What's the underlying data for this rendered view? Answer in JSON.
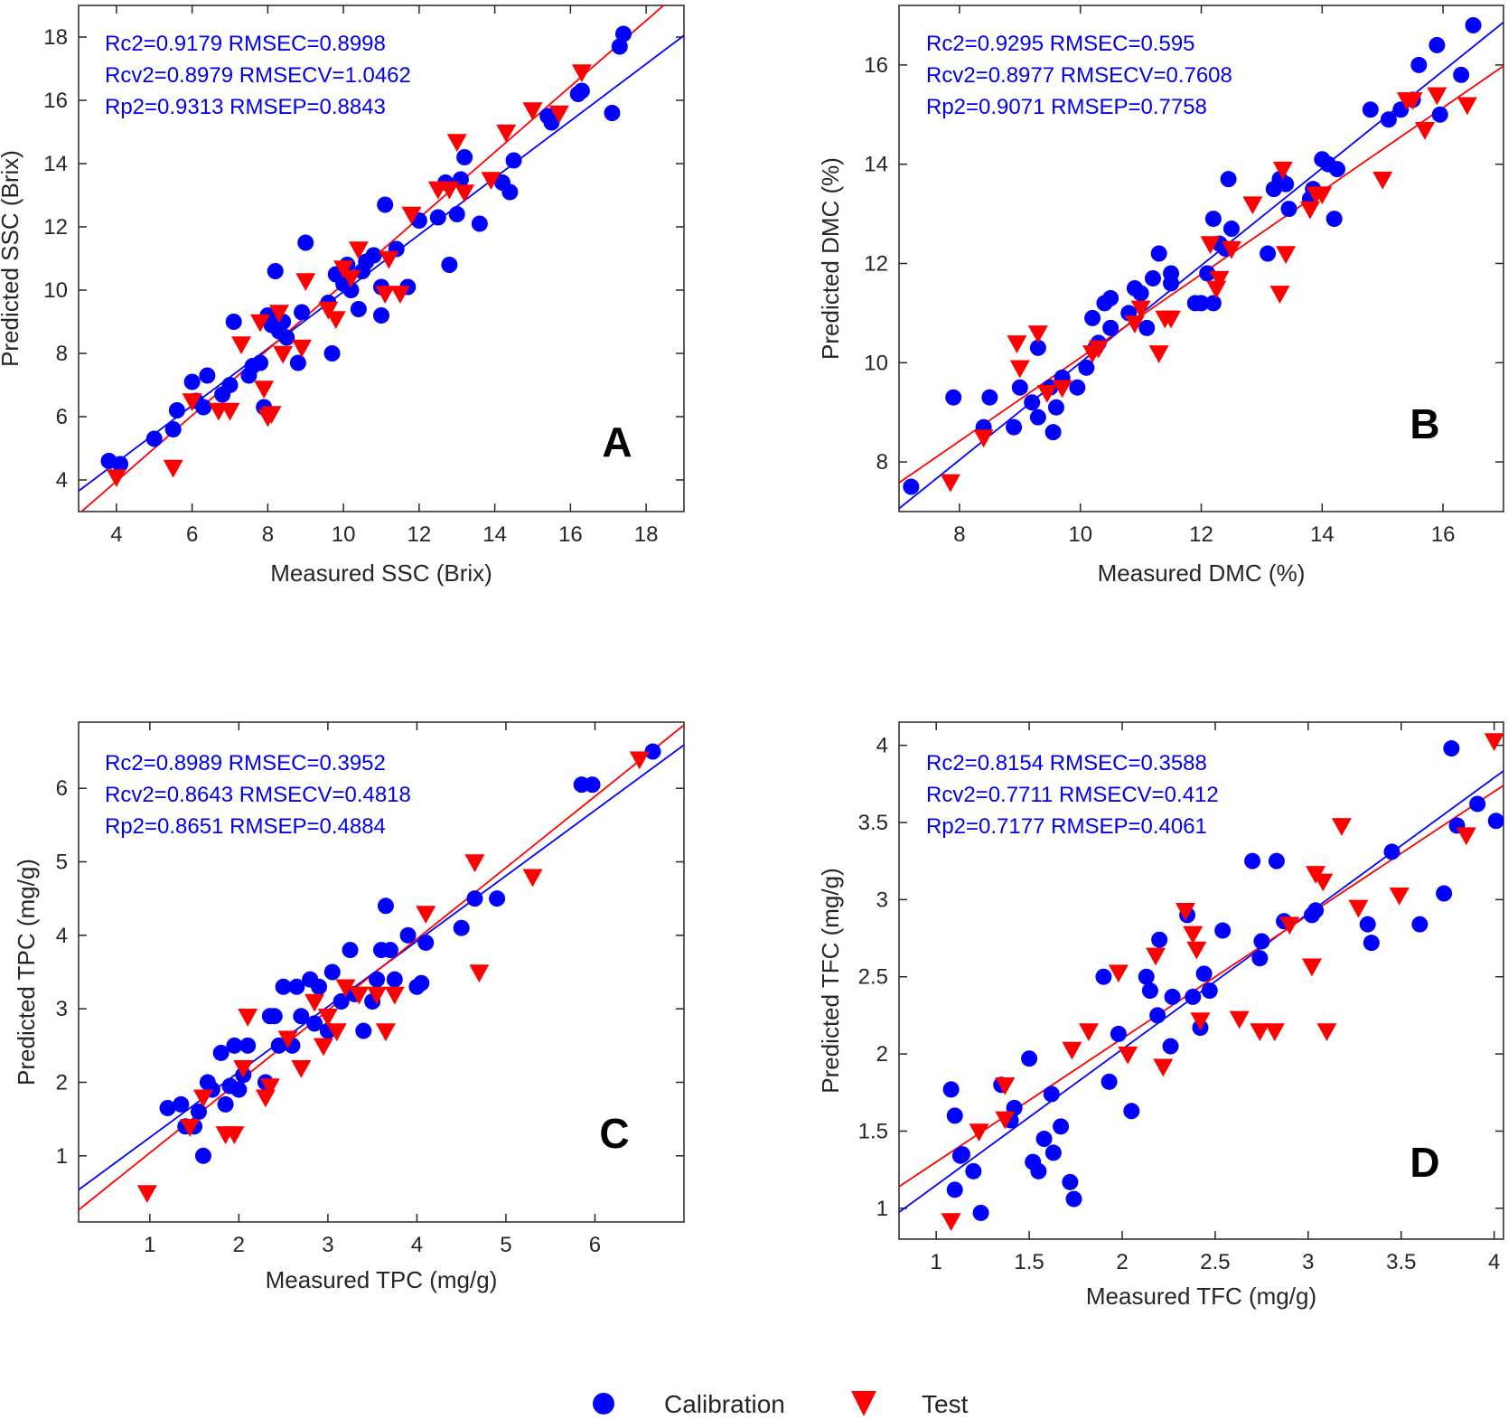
{
  "colors": {
    "calibration": "#0000ff",
    "test": "#ff0000",
    "axis": "#262626",
    "stats": "#0000ee"
  },
  "legend": {
    "calibration_label": "Calibration",
    "test_label": "Test"
  },
  "chart_data": [
    {
      "type": "scatter",
      "panel_label": "A",
      "xlabel": "Measured SSC (Brix)",
      "ylabel": "Predicted SSC (Brix)",
      "xlim": [
        3,
        19
      ],
      "ylim": [
        3,
        19
      ],
      "xticks": [
        4,
        6,
        8,
        10,
        12,
        14,
        16,
        18
      ],
      "yticks": [
        4,
        6,
        8,
        10,
        12,
        14,
        16,
        18
      ],
      "stats": [
        "Rc2=0.9179   RMSEC=0.8998",
        "Rcv2=0.8979  RMSECV=1.0462",
        "Rp2=0.9313   RMSEP=0.8843"
      ],
      "fit_lines": {
        "calibration": [
          0.9,
          0.95
        ],
        "test": [
          1.04,
          -0.2
        ]
      },
      "series": [
        {
          "name": "Calibration",
          "marker": "circle",
          "x": [
            3.8,
            4.1,
            5,
            5.5,
            5.6,
            6,
            6.1,
            6.3,
            6.4,
            6.8,
            7,
            7.1,
            7.5,
            7.6,
            7.8,
            7.9,
            8,
            8.1,
            8.2,
            8.3,
            8.4,
            8.5,
            8.8,
            8.9,
            9,
            9.6,
            9.7,
            9.8,
            10,
            10.1,
            10.2,
            10.4,
            10.5,
            10.6,
            10.8,
            11,
            11,
            11.1,
            11.4,
            11.7,
            12,
            12.5,
            12.8,
            12.7,
            13,
            13.1,
            13.2,
            13.6,
            14.2,
            14.4,
            14.5,
            15.4,
            15.5,
            16.2,
            16.3,
            17.1,
            17.3,
            17.4
          ],
          "y": [
            4.6,
            4.5,
            5.3,
            5.6,
            6.2,
            7.1,
            6.5,
            6.3,
            7.3,
            6.7,
            7.0,
            9.0,
            7.3,
            7.6,
            7.7,
            6.3,
            9.2,
            8.9,
            10.6,
            8.7,
            9.0,
            8.5,
            7.7,
            9.3,
            11.5,
            9.6,
            8.0,
            10.5,
            10.2,
            10.8,
            10.0,
            9.4,
            10.6,
            10.9,
            11.1,
            10.1,
            9.2,
            12.7,
            11.3,
            10.1,
            12.2,
            12.3,
            10.8,
            13.4,
            12.4,
            13.5,
            14.2,
            12.1,
            13.4,
            13.1,
            14.1,
            15.5,
            15.3,
            16.2,
            16.3,
            15.6,
            17.7,
            18.1
          ]
        },
        {
          "name": "Test",
          "marker": "triangle",
          "x": [
            4,
            5.5,
            6,
            6.7,
            7,
            7.3,
            7.8,
            8,
            7.9,
            8.1,
            8.3,
            8.4,
            8.9,
            9,
            9.6,
            9.8,
            10,
            10.2,
            10.4,
            11.1,
            11.2,
            11.5,
            11.8,
            12.5,
            12.8,
            13,
            13.2,
            13.9,
            14.3,
            15,
            15.7,
            16.3
          ],
          "y": [
            4.1,
            4.4,
            6.5,
            6.2,
            6.2,
            8.3,
            9.0,
            6.0,
            6.9,
            6.1,
            9.3,
            8.0,
            8.2,
            10.3,
            9.4,
            9.1,
            10.7,
            10.4,
            11.3,
            9.9,
            11.0,
            9.9,
            12.4,
            13.2,
            13.2,
            14.7,
            13.1,
            13.5,
            15.0,
            15.7,
            15.6,
            16.9
          ]
        }
      ]
    },
    {
      "type": "scatter",
      "panel_label": "B",
      "xlabel": "Measured DMC (%)",
      "ylabel": "Predicted DMC (%)",
      "xlim": [
        7,
        17
      ],
      "ylim": [
        7,
        17.2
      ],
      "xticks": [
        8,
        10,
        12,
        14,
        16
      ],
      "yticks": [
        8,
        10,
        12,
        14,
        16
      ],
      "stats": [
        "Rc2=0.9295   RMSEC=0.595",
        "Rcv2=0.8977  RMSECV=0.7608",
        "Rp2=0.9071   RMSEP=0.7758"
      ],
      "fit_lines": {
        "calibration": [
          0.98,
          0.2
        ],
        "test": [
          0.84,
          1.7
        ]
      },
      "series": [
        {
          "name": "Calibration",
          "marker": "circle",
          "x": [
            7.2,
            7.9,
            8.4,
            8.5,
            8.9,
            9,
            9.2,
            9.3,
            9.3,
            9.5,
            9.55,
            9.6,
            9.7,
            9.95,
            10.1,
            10.2,
            10.25,
            10.3,
            10.4,
            10.5,
            10.5,
            10.8,
            10.9,
            11,
            11.1,
            11.2,
            11.3,
            11.5,
            11.5,
            11.9,
            12.0,
            12.1,
            12.2,
            12.2,
            12.3,
            12.4,
            12.45,
            12.5,
            13.1,
            13.2,
            13.3,
            13.4,
            13.45,
            13.8,
            13.85,
            14,
            14.1,
            14.2,
            14.25,
            14.8,
            15.1,
            15.3,
            15.5,
            15.6,
            15.9,
            15.95,
            16.3,
            16.5
          ],
          "y": [
            7.5,
            9.3,
            8.7,
            9.3,
            8.7,
            9.5,
            9.2,
            10.3,
            8.9,
            9.5,
            8.6,
            9.1,
            9.7,
            9.5,
            9.9,
            10.9,
            10.3,
            10.4,
            11.2,
            11.3,
            10.7,
            11.0,
            11.5,
            11.4,
            10.7,
            11.7,
            12.2,
            11.6,
            11.8,
            11.2,
            11.2,
            11.8,
            11.2,
            12.9,
            12.4,
            12.3,
            13.7,
            12.7,
            12.2,
            13.5,
            13.7,
            13.6,
            13.1,
            13.3,
            13.5,
            14.1,
            14.0,
            12.9,
            13.9,
            15.1,
            14.9,
            15.1,
            15.3,
            16.0,
            16.4,
            15.0,
            15.8,
            16.8
          ]
        },
        {
          "name": "Test",
          "marker": "triangle",
          "x": [
            7.85,
            8.4,
            8.95,
            9.3,
            9.0,
            9.45,
            9.7,
            10.2,
            10.3,
            10.9,
            11.0,
            11.3,
            11.4,
            11.5,
            12.25,
            12.15,
            12.3,
            12.5,
            12.85,
            13.3,
            13.4,
            13.35,
            13.8,
            13.9,
            14.0,
            15.0,
            15.4,
            15.5,
            15.7,
            15.9,
            16.4
          ],
          "y": [
            7.6,
            8.5,
            10.4,
            10.6,
            9.9,
            9.4,
            9.5,
            10.2,
            10.3,
            10.8,
            11.1,
            10.2,
            10.9,
            10.9,
            11.5,
            12.4,
            11.7,
            12.3,
            13.2,
            11.4,
            12.2,
            13.9,
            13.1,
            13.4,
            13.4,
            13.7,
            15.3,
            15.3,
            14.7,
            15.4,
            15.2
          ]
        }
      ]
    },
    {
      "type": "scatter",
      "panel_label": "C",
      "xlabel": "Measured TPC (mg/g)",
      "ylabel": "Predicted TPC (mg/g)",
      "xlim": [
        0.2,
        7
      ],
      "ylim": [
        0.1,
        6.9
      ],
      "xticks": [
        1,
        2,
        3,
        4,
        5,
        6
      ],
      "yticks": [
        1,
        2,
        3,
        4,
        5,
        6
      ],
      "stats": [
        "Rc2=0.8989   RMSEC=0.3952",
        "Rcv2=0.8643  RMSECV=0.4818",
        "Rp2=0.8651   RMSEP=0.4884"
      ],
      "fit_lines": {
        "calibration": [
          0.89,
          0.36
        ],
        "test": [
          0.97,
          0.07
        ]
      },
      "series": [
        {
          "name": "Calibration",
          "marker": "circle",
          "x": [
            1.2,
            1.35,
            1.4,
            1.5,
            1.55,
            1.6,
            1.65,
            1.7,
            1.8,
            1.85,
            1.9,
            1.95,
            2.0,
            2.05,
            2.1,
            2.3,
            2.35,
            2.4,
            2.45,
            2.5,
            2.6,
            2.65,
            2.7,
            2.8,
            2.85,
            2.9,
            3.0,
            3.05,
            3.15,
            3.25,
            3.3,
            3.4,
            3.5,
            3.55,
            3.6,
            3.65,
            3.7,
            3.75,
            3.9,
            4.0,
            4.05,
            4.1,
            4.5,
            4.65,
            4.9,
            5.85,
            5.97,
            6.65
          ],
          "y": [
            1.65,
            1.7,
            1.4,
            1.4,
            1.6,
            1.0,
            2.0,
            1.9,
            2.4,
            1.7,
            1.95,
            2.5,
            1.9,
            2.1,
            2.5,
            2.0,
            2.9,
            2.9,
            2.5,
            3.3,
            2.5,
            3.3,
            2.9,
            3.4,
            2.8,
            3.3,
            2.7,
            3.5,
            3.1,
            3.8,
            3.2,
            2.7,
            3.1,
            3.4,
            3.8,
            4.4,
            3.8,
            3.4,
            4.0,
            3.3,
            3.35,
            3.9,
            4.1,
            4.5,
            4.5,
            6.05,
            6.05,
            6.5
          ]
        },
        {
          "name": "Test",
          "marker": "triangle",
          "x": [
            0.97,
            1.45,
            1.6,
            1.85,
            1.95,
            2.05,
            2.1,
            2.3,
            2.35,
            2.55,
            2.7,
            2.85,
            2.95,
            3.0,
            3.1,
            3.2,
            3.35,
            3.55,
            3.65,
            3.75,
            4.1,
            4.65,
            4.7,
            5.3,
            6.5
          ],
          "y": [
            0.5,
            1.4,
            1.8,
            1.3,
            1.3,
            2.2,
            2.9,
            1.8,
            1.95,
            2.6,
            2.2,
            3.1,
            2.5,
            2.9,
            2.7,
            3.3,
            3.2,
            3.2,
            2.7,
            3.2,
            4.3,
            5.0,
            3.5,
            4.8,
            6.4
          ]
        }
      ]
    },
    {
      "type": "scatter",
      "panel_label": "D",
      "xlabel": "Measured TFC (mg/g)",
      "ylabel": "Predicted TFC (mg/g)",
      "xlim": [
        0.8,
        4.05
      ],
      "ylim": [
        0.8,
        4.15
      ],
      "xticks": [
        1,
        1.5,
        2,
        2.5,
        3,
        3.5,
        4
      ],
      "yticks": [
        1,
        1.5,
        2,
        2.5,
        3,
        3.5,
        4
      ],
      "stats": [
        "Rc2=0.8154   RMSEC=0.3588",
        "Rcv2=0.7711  RMSECV=0.412",
        "Rp2=0.7177   RMSEP=0.4061"
      ],
      "fit_lines": {
        "calibration": [
          0.88,
          0.27
        ],
        "test": [
          0.8,
          0.5
        ]
      },
      "series": [
        {
          "name": "Calibration",
          "marker": "circle",
          "x": [
            1.08,
            1.1,
            1.1,
            1.13,
            1.14,
            1.2,
            1.24,
            1.35,
            1.4,
            1.42,
            1.5,
            1.52,
            1.55,
            1.58,
            1.62,
            1.63,
            1.67,
            1.72,
            1.74,
            1.9,
            1.93,
            1.98,
            2.05,
            2.13,
            2.15,
            2.19,
            2.2,
            2.26,
            2.27,
            2.35,
            2.38,
            2.42,
            2.44,
            2.47,
            2.54,
            2.7,
            2.74,
            2.75,
            2.83,
            2.87,
            3.02,
            3.04,
            3.32,
            3.34,
            3.45,
            3.6,
            3.73,
            3.77,
            3.8,
            3.91,
            4.01
          ],
          "y": [
            1.77,
            1.12,
            1.6,
            1.34,
            1.35,
            1.24,
            0.97,
            1.8,
            1.57,
            1.65,
            1.97,
            1.3,
            1.24,
            1.45,
            1.74,
            1.36,
            1.53,
            1.17,
            1.06,
            2.5,
            1.82,
            2.13,
            1.63,
            2.5,
            2.41,
            2.25,
            2.74,
            2.05,
            2.37,
            2.9,
            2.37,
            2.17,
            2.52,
            2.41,
            2.8,
            3.25,
            2.62,
            2.73,
            3.25,
            2.86,
            2.9,
            2.93,
            2.84,
            2.72,
            3.31,
            2.84,
            3.04,
            3.98,
            3.48,
            3.62,
            3.51
          ]
        },
        {
          "name": "Test",
          "marker": "triangle",
          "x": [
            1.08,
            1.23,
            1.37,
            1.37,
            1.73,
            1.82,
            1.98,
            2.03,
            2.18,
            2.22,
            2.34,
            2.38,
            2.4,
            2.42,
            2.63,
            2.74,
            2.82,
            2.9,
            3.02,
            3.04,
            3.1,
            3.08,
            3.18,
            3.27,
            3.49,
            3.85,
            4.0
          ],
          "y": [
            0.92,
            1.5,
            1.58,
            1.8,
            2.03,
            2.15,
            2.53,
            2.0,
            2.64,
            1.92,
            2.93,
            2.78,
            2.68,
            2.22,
            2.23,
            2.15,
            2.15,
            2.84,
            2.57,
            3.17,
            2.15,
            3.12,
            3.48,
            2.95,
            3.03,
            3.42,
            4.03
          ]
        }
      ]
    }
  ]
}
